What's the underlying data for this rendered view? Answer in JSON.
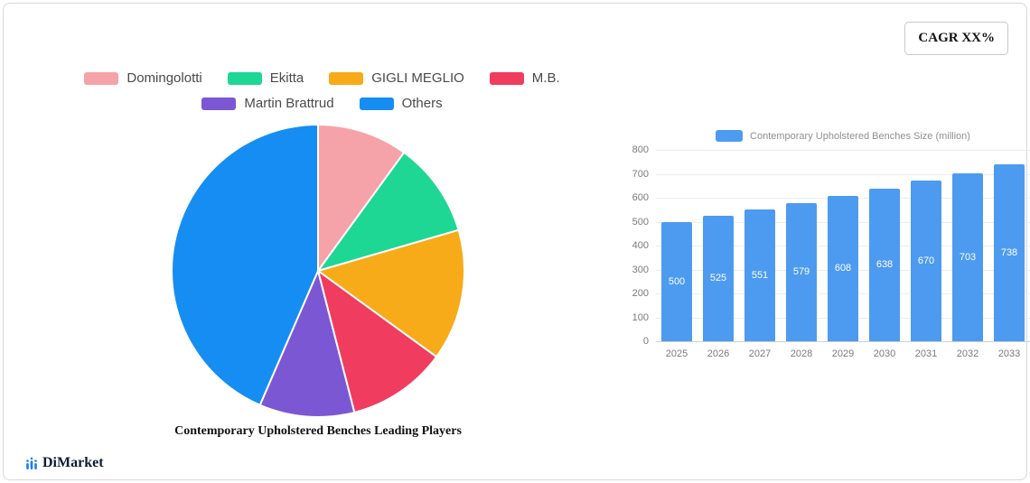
{
  "card": {
    "cagr_badge": "CAGR XX%"
  },
  "legend": {
    "items": [
      {
        "label": "Domingolotti",
        "color": "#f5a2a9"
      },
      {
        "label": "Ekitta",
        "color": "#1ed795"
      },
      {
        "label": "GIGLI MEGLIO",
        "color": "#f7ab19"
      },
      {
        "label": "M.B.",
        "color": "#f03c5f"
      },
      {
        "label": "Martin Brattrud",
        "color": "#7b57d4"
      },
      {
        "label": "Others",
        "color": "#168df2"
      }
    ]
  },
  "chart_data": [
    {
      "type": "pie",
      "title": "Contemporary Upholstered Benches Leading Players",
      "labels": [
        "Domingolotti",
        "Ekitta",
        "GIGLI MEGLIO",
        "M.B.",
        "Martin Brattrud",
        "Others"
      ],
      "values": [
        10,
        10.5,
        14.5,
        11,
        10.5,
        43.5
      ],
      "colors": [
        "#f5a2a9",
        "#1ed795",
        "#f7ab19",
        "#f03c5f",
        "#7b57d4",
        "#168df2"
      ],
      "start_angle_deg": 0,
      "direction": "clockwise",
      "legend_position": "top"
    },
    {
      "type": "bar",
      "legend": "Contemporary Upholstered Benches Size (million)",
      "categories": [
        "2025",
        "2026",
        "2027",
        "2028",
        "2029",
        "2030",
        "2031",
        "2032",
        "2033"
      ],
      "values": [
        500,
        525,
        551,
        579,
        608,
        638,
        670,
        703,
        738
      ],
      "bar_color": "#4d9bf0",
      "ylim": [
        0,
        800
      ],
      "yticks": [
        0,
        100,
        200,
        300,
        400,
        500,
        600,
        700,
        800
      ],
      "grid": true,
      "value_labels": "inside-white",
      "legend_position": "top"
    }
  ],
  "footer": {
    "brand": "DiMarket"
  }
}
